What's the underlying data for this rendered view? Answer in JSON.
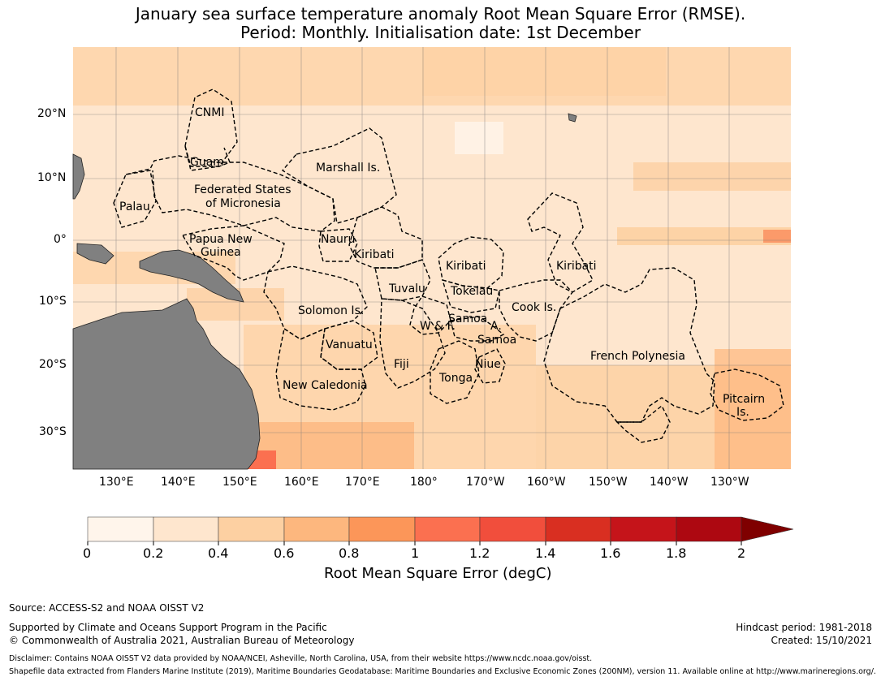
{
  "title": {
    "line1": "January sea surface temperature anomaly Root Mean Square Error (RMSE).",
    "line2": "Period: Monthly. Initialisation date: 1st December"
  },
  "map": {
    "lat_labels": [
      "20°N",
      "10°N",
      "0°",
      "10°S",
      "20°S",
      "30°S"
    ],
    "lon_labels": [
      "130°E",
      "140°E",
      "150°E",
      "160°E",
      "170°E",
      "180°",
      "170°W",
      "160°W",
      "150°W",
      "140°W",
      "130°W"
    ],
    "regions": [
      {
        "name": "CNMI"
      },
      {
        "name": "Guam"
      },
      {
        "name": "Marshall Is."
      },
      {
        "name": "Federated States"
      },
      {
        "name": "of Micronesia"
      },
      {
        "name": "Palau"
      },
      {
        "name": "Papua New"
      },
      {
        "name": "Guinea"
      },
      {
        "name": "Nauru"
      },
      {
        "name": "Kiribati"
      },
      {
        "name": "Kiribati"
      },
      {
        "name": "Kiribati"
      },
      {
        "name": "Tuvalu"
      },
      {
        "name": "Tokelau"
      },
      {
        "name": "Solomon Is."
      },
      {
        "name": "Samoa"
      },
      {
        "name": "W & F."
      },
      {
        "name": "A."
      },
      {
        "name": "Samoa"
      },
      {
        "name": "Cook Is."
      },
      {
        "name": "Vanuatu"
      },
      {
        "name": "Fiji"
      },
      {
        "name": "Niue"
      },
      {
        "name": "Tonga"
      },
      {
        "name": "French Polynesia"
      },
      {
        "name": "New Caledonia"
      },
      {
        "name": "Pitcairn"
      },
      {
        "name": "Is."
      }
    ],
    "colors": {
      "ocean_low": "#fee6ce",
      "ocean_mid": "#fdd0a2",
      "ocean_high": "#fdae6b",
      "land": "#808080",
      "eez_border": "#000000"
    }
  },
  "colorbar": {
    "ticks": [
      "0",
      "0.2",
      "0.4",
      "0.6",
      "0.8",
      "1",
      "1.2",
      "1.4",
      "1.6",
      "1.8",
      "2"
    ],
    "colors": [
      "#fff5eb",
      "#fee6ce",
      "#fdd0a2",
      "#fdb77e",
      "#fc9659",
      "#fb7050",
      "#f14e3c",
      "#d92f21",
      "#c5141a",
      "#ad0811",
      "#7f0000"
    ],
    "label": "Root Mean Square Error (degC)",
    "extend": "max"
  },
  "footer": {
    "source": "Source: ACCESS-S2 and NOAA OISST V2",
    "support1": "Supported by Climate and Oceans Support Program in the Pacific",
    "support2": "© Commonwealth of Australia 2021, Australian Bureau of Meteorology",
    "hindcast": "Hindcast period: 1981-2018",
    "created": "Created: 15/10/2021",
    "disclaimer": "Disclaimer: Contains NOAA OISST V2 data provided by NOAA/NCEI, Asheville, North Carolina, USA, from their website https://www.ncdc.noaa.gov/oisst.",
    "shapefile": "Shapefile data extracted from Flanders Marine Institute (2019), Maritime Boundaries Geodatabase: Maritime Boundaries and Exclusive Economic Zones (200NM), version 11. Available online at http://www.marineregions.org/."
  }
}
